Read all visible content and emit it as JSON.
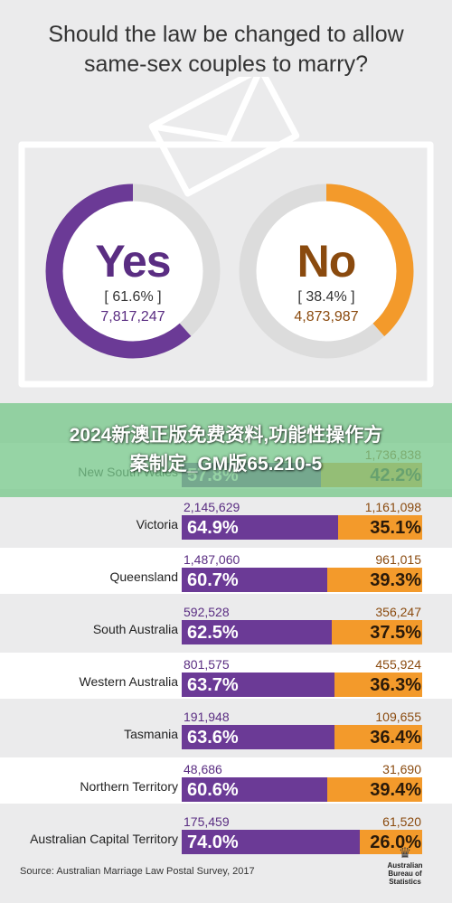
{
  "title_lines": [
    "Should the law be changed to allow",
    "same-sex couples to marry?"
  ],
  "overlay_banner": {
    "line1": "2024新澳正版免费资料,功能性操作方",
    "line2": "案制定_GM版65.210-5"
  },
  "chart_data": [
    {
      "type": "pie",
      "title": "",
      "slices": [
        {
          "label": "Yes",
          "percent_text": "[ 61.6% ]",
          "count_text": "7,817,247",
          "value": 61.6,
          "color": "#6b3a96"
        },
        {
          "label": "No",
          "percent_text": "[ 38.4% ]",
          "count_text": "4,873,987",
          "value": 38.4,
          "color": "#f39a2b"
        }
      ]
    },
    {
      "type": "bar",
      "orientation": "horizontal-stacked",
      "categories": [
        "New South Wales",
        "Victoria",
        "Queensland",
        "South Australia",
        "Western Australia",
        "Tasmania",
        "Northern Territory",
        "Australian Capital Territory"
      ],
      "series": [
        {
          "name": "Yes",
          "color": "#6b3a96",
          "values": [
            57.8,
            64.9,
            60.7,
            62.5,
            63.7,
            63.6,
            60.6,
            74.0
          ],
          "labels": [
            "57.8%",
            "64.9%",
            "60.7%",
            "62.5%",
            "63.7%",
            "63.6%",
            "60.6%",
            "74.0%"
          ],
          "counts": [
            "",
            "2,145,629",
            "1,487,060",
            "592,528",
            "801,575",
            "191,948",
            "48,686",
            "175,459"
          ]
        },
        {
          "name": "No",
          "color": "#f39a2b",
          "values": [
            42.2,
            35.1,
            39.3,
            37.5,
            36.3,
            36.4,
            39.4,
            26.0
          ],
          "labels": [
            "42.2%",
            "35.1%",
            "39.3%",
            "37.5%",
            "36.3%",
            "36.4%",
            "39.4%",
            "26.0%"
          ],
          "counts": [
            "1,736,838",
            "1,161,098",
            "961,015",
            "356,247",
            "455,924",
            "109,655",
            "31,690",
            "61,520"
          ]
        }
      ],
      "xlim": [
        0,
        100
      ]
    }
  ],
  "source": "Source: Australian Marriage Law Postal Survey, 2017",
  "logo_text": [
    "Australian",
    "Bureau of",
    "Statistics"
  ]
}
